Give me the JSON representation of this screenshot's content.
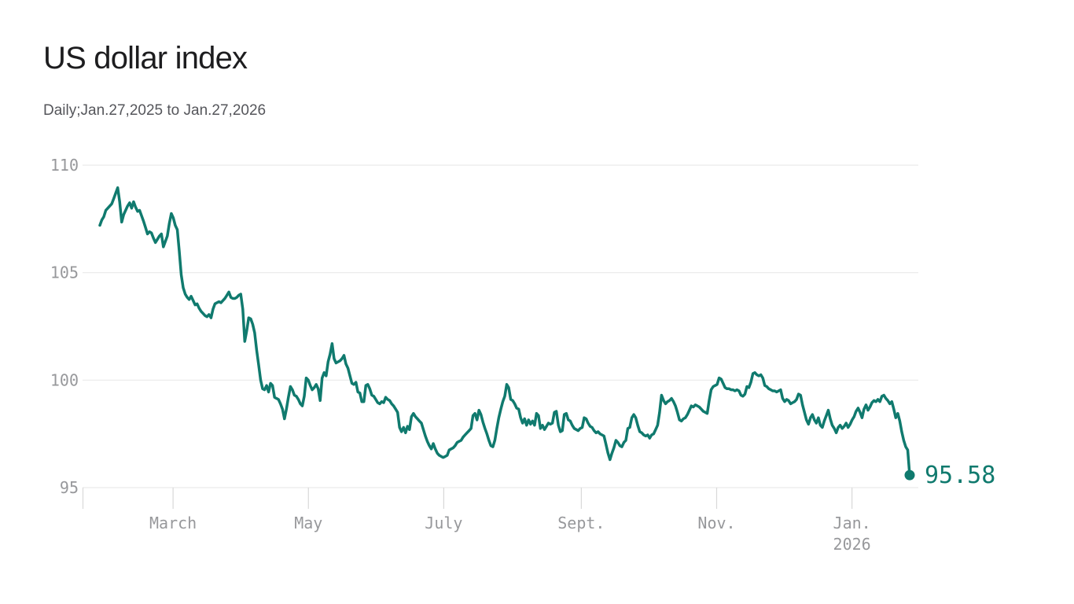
{
  "header": {
    "title": "US dollar index",
    "subtitle": "Daily;Jan.27,2025 to Jan.27,2026"
  },
  "colors": {
    "line": "#107a6e",
    "title": "#1d1d1f",
    "subtitle": "#55565b",
    "axis_label": "#97989b",
    "gridline": "#e9e9e9",
    "tick": "#d8d8d8",
    "background": "#ffffff"
  },
  "chart_data": {
    "type": "line",
    "title": "US dollar index",
    "subtitle": "Daily;Jan.27,2025 to Jan.27,2026",
    "x_range": {
      "start_label": "Jan.27,2025",
      "end_label": "Jan.27,2026",
      "total_days": 365
    },
    "x_ticks": [
      {
        "day": 33,
        "label": "March"
      },
      {
        "day": 94,
        "label": "May"
      },
      {
        "day": 155,
        "label": "July"
      },
      {
        "day": 217,
        "label": "Sept."
      },
      {
        "day": 278,
        "label": "Nov."
      },
      {
        "day": 339,
        "label": "Jan.",
        "sublabel": "2026"
      }
    ],
    "y_ticks": [
      {
        "value": 95,
        "label": "95"
      },
      {
        "value": 100,
        "label": "100"
      },
      {
        "value": 105,
        "label": "105"
      },
      {
        "value": 110,
        "label": "110"
      }
    ],
    "ylim": [
      95,
      110
    ],
    "grid": "horizontal",
    "legend": "none",
    "last_value": 95.58,
    "last_value_label": "95.58",
    "series": [
      {
        "name": "US dollar index",
        "color": "#107a6e",
        "values": [
          107.2,
          107.45,
          107.6,
          107.9,
          108.0,
          108.1,
          108.2,
          108.45,
          108.7,
          108.95,
          108.3,
          107.35,
          107.7,
          107.9,
          108.1,
          108.25,
          108.0,
          108.3,
          108.05,
          107.85,
          107.9,
          107.65,
          107.4,
          107.1,
          106.8,
          106.9,
          106.85,
          106.6,
          106.4,
          106.55,
          106.7,
          106.8,
          106.2,
          106.45,
          106.7,
          107.3,
          107.75,
          107.55,
          107.2,
          107.0,
          106.0,
          104.9,
          104.3,
          104.0,
          103.85,
          103.75,
          103.9,
          103.7,
          103.5,
          103.55,
          103.35,
          103.2,
          103.1,
          103.0,
          102.95,
          103.05,
          102.9,
          103.3,
          103.55,
          103.6,
          103.65,
          103.6,
          103.7,
          103.8,
          103.95,
          104.1,
          103.85,
          103.8,
          103.8,
          103.85,
          103.95,
          104.0,
          103.3,
          101.8,
          102.3,
          102.9,
          102.85,
          102.6,
          102.2,
          101.4,
          100.7,
          100.0,
          99.6,
          99.55,
          99.75,
          99.45,
          99.85,
          99.75,
          99.2,
          99.15,
          99.1,
          98.9,
          98.65,
          98.2,
          98.65,
          99.2,
          99.7,
          99.55,
          99.3,
          99.25,
          99.1,
          98.9,
          98.8,
          99.25,
          100.1,
          100.0,
          99.75,
          99.55,
          99.65,
          99.8,
          99.6,
          99.05,
          100.1,
          100.35,
          100.2,
          100.85,
          101.2,
          101.7,
          101.0,
          100.8,
          100.85,
          100.9,
          101.0,
          101.15,
          100.75,
          100.55,
          100.2,
          99.85,
          99.8,
          99.9,
          99.45,
          99.4,
          99.0,
          99.0,
          99.75,
          99.8,
          99.6,
          99.3,
          99.25,
          99.1,
          98.95,
          98.9,
          99.0,
          98.95,
          99.2,
          99.1,
          99.05,
          98.9,
          98.8,
          98.65,
          98.5,
          97.8,
          97.6,
          97.8,
          97.55,
          97.85,
          97.7,
          98.3,
          98.45,
          98.3,
          98.2,
          98.1,
          98.0,
          97.7,
          97.4,
          97.15,
          96.95,
          96.8,
          97.05,
          96.8,
          96.6,
          96.5,
          96.45,
          96.4,
          96.45,
          96.5,
          96.75,
          96.8,
          96.85,
          96.95,
          97.1,
          97.15,
          97.2,
          97.35,
          97.45,
          97.55,
          97.65,
          97.75,
          98.35,
          98.45,
          98.15,
          98.6,
          98.4,
          98.05,
          97.75,
          97.5,
          97.2,
          96.95,
          96.9,
          97.2,
          97.75,
          98.25,
          98.65,
          99.0,
          99.25,
          99.8,
          99.65,
          99.1,
          99.05,
          98.9,
          98.7,
          98.65,
          98.25,
          98.0,
          98.2,
          97.9,
          98.15,
          97.95,
          98.1,
          97.9,
          98.45,
          98.35,
          97.75,
          97.9,
          97.7,
          97.85,
          98.0,
          97.95,
          98.0,
          98.5,
          98.55,
          97.9,
          97.6,
          97.65,
          98.4,
          98.45,
          98.15,
          98.1,
          97.9,
          97.75,
          97.7,
          97.65,
          97.75,
          97.8,
          98.25,
          98.2,
          98.0,
          97.85,
          97.8,
          97.65,
          97.55,
          97.6,
          97.5,
          97.45,
          97.4,
          97.0,
          96.6,
          96.3,
          96.6,
          96.85,
          97.2,
          97.1,
          96.95,
          96.9,
          97.1,
          97.2,
          97.75,
          97.8,
          98.25,
          98.4,
          98.25,
          97.9,
          97.6,
          97.55,
          97.45,
          97.4,
          97.45,
          97.3,
          97.45,
          97.5,
          97.7,
          97.9,
          98.5,
          99.3,
          99.05,
          98.9,
          99.0,
          99.05,
          99.15,
          99.0,
          98.8,
          98.5,
          98.15,
          98.1,
          98.2,
          98.25,
          98.4,
          98.6,
          98.8,
          98.75,
          98.85,
          98.8,
          98.75,
          98.65,
          98.55,
          98.5,
          98.45,
          99.05,
          99.55,
          99.7,
          99.75,
          99.8,
          100.1,
          100.05,
          99.85,
          99.65,
          99.6,
          99.6,
          99.55,
          99.55,
          99.5,
          99.55,
          99.5,
          99.3,
          99.25,
          99.35,
          99.7,
          99.65,
          99.9,
          100.3,
          100.35,
          100.25,
          100.2,
          100.25,
          100.1,
          99.75,
          99.7,
          99.6,
          99.55,
          99.5,
          99.5,
          99.45,
          99.5,
          99.55,
          99.15,
          99.0,
          99.1,
          99.05,
          98.9,
          98.95,
          99.0,
          99.1,
          99.35,
          99.3,
          98.85,
          98.5,
          98.15,
          97.95,
          98.25,
          98.4,
          98.15,
          98.0,
          98.25,
          97.9,
          97.8,
          98.1,
          98.35,
          98.6,
          98.2,
          97.9,
          97.75,
          97.55,
          97.8,
          97.9,
          97.75,
          97.85,
          98.0,
          97.8,
          97.95,
          98.15,
          98.3,
          98.55,
          98.7,
          98.5,
          98.25,
          98.65,
          98.85,
          98.6,
          98.75,
          98.95,
          99.05,
          99.0,
          99.1,
          99.0,
          99.25,
          99.3,
          99.15,
          99.05,
          98.9,
          99.0,
          98.65,
          98.25,
          98.45,
          98.1,
          97.6,
          97.2,
          96.9,
          96.75,
          95.58
        ]
      }
    ]
  }
}
